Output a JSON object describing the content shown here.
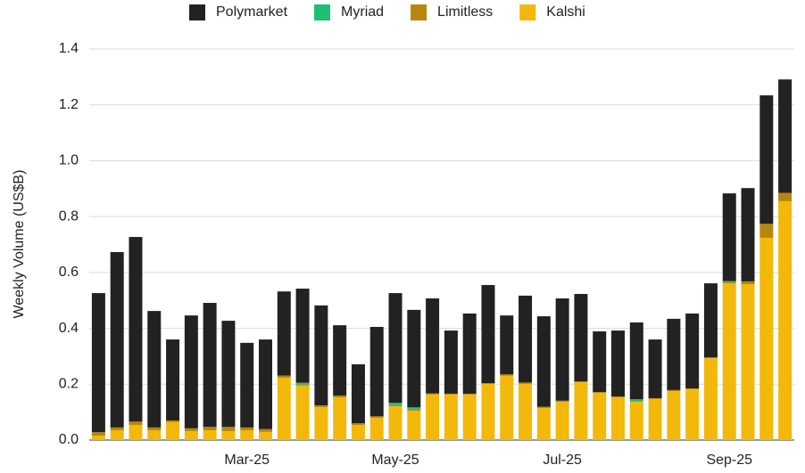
{
  "chart_data": {
    "type": "stacked_bar",
    "y_label": "Weekly Volume (US$B)",
    "categories": [
      null,
      null,
      null,
      null,
      null,
      null,
      null,
      null,
      "Mar-25",
      null,
      null,
      null,
      null,
      null,
      null,
      null,
      "May-25",
      null,
      null,
      null,
      null,
      null,
      null,
      null,
      null,
      "Jul-25",
      null,
      null,
      null,
      null,
      null,
      null,
      null,
      null,
      "Sep-25",
      null,
      null,
      null
    ],
    "series": [
      {
        "name": "Kalshi",
        "color": "#f2b90c",
        "values": [
          0.016,
          0.035,
          0.054,
          0.035,
          0.064,
          0.032,
          0.035,
          0.032,
          0.035,
          0.029,
          0.223,
          0.195,
          0.118,
          0.153,
          0.054,
          0.08,
          0.121,
          0.105,
          0.163,
          0.163,
          0.163,
          0.201,
          0.23,
          0.201,
          0.115,
          0.137,
          0.207,
          0.169,
          0.153,
          0.137,
          0.147,
          0.175,
          0.182,
          0.293,
          0.561,
          0.558,
          0.724,
          0.855
        ]
      },
      {
        "name": "Limitless",
        "color": "#b8860b",
        "values": [
          0.012,
          0.01,
          0.012,
          0.01,
          0.006,
          0.01,
          0.012,
          0.015,
          0.01,
          0.01,
          0.008,
          0.004,
          0.006,
          0.006,
          0.006,
          0.005,
          0.004,
          0.004,
          0.004,
          0.003,
          0.003,
          0.003,
          0.005,
          0.005,
          0.004,
          0.004,
          0.003,
          0.003,
          0.003,
          0.003,
          0.003,
          0.004,
          0.003,
          0.003,
          0.004,
          0.01,
          0.05,
          0.03
        ]
      },
      {
        "name": "Myriad",
        "color": "#1dbf73",
        "values": [
          0,
          0,
          0,
          0,
          0,
          0,
          0,
          0,
          0,
          0,
          0,
          0.006,
          0,
          0,
          0,
          0,
          0.008,
          0.008,
          0,
          0,
          0,
          0,
          0,
          0,
          0,
          0,
          0,
          0,
          0,
          0.006,
          0,
          0,
          0,
          0,
          0.004,
          0,
          0,
          0
        ]
      },
      {
        "name": "Polymarket",
        "color": "#222222",
        "values": [
          0.498,
          0.628,
          0.661,
          0.417,
          0.29,
          0.404,
          0.444,
          0.38,
          0.303,
          0.321,
          0.301,
          0.337,
          0.358,
          0.252,
          0.211,
          0.32,
          0.393,
          0.349,
          0.34,
          0.226,
          0.287,
          0.351,
          0.211,
          0.311,
          0.324,
          0.366,
          0.313,
          0.217,
          0.236,
          0.275,
          0.21,
          0.255,
          0.268,
          0.265,
          0.314,
          0.334,
          0.46,
          0.406
        ]
      }
    ],
    "legend_order": [
      3,
      2,
      1,
      0
    ],
    "ylim": [
      0,
      1.4
    ],
    "yticks": [
      {
        "value": 0,
        "label": "0.0"
      },
      0.2,
      0.4,
      0.6,
      0.8,
      {
        "value": 1,
        "label": "1.0"
      },
      1.2,
      1.4
    ],
    "grid": true
  }
}
